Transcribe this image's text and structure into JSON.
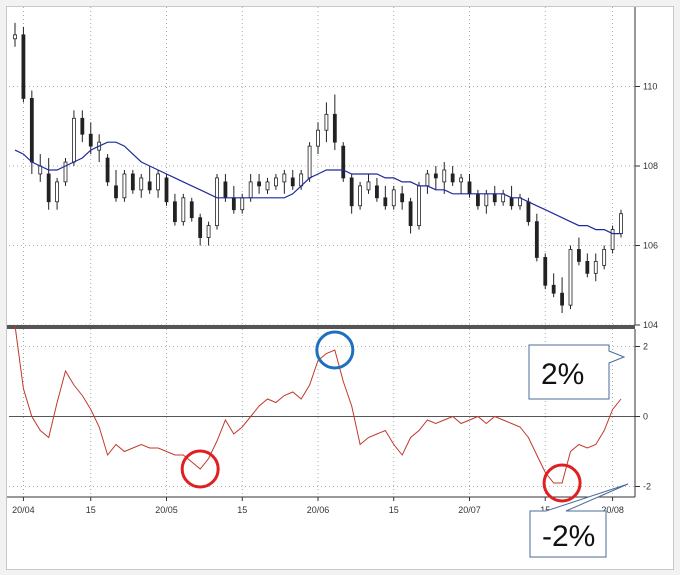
{
  "chart_data": [
    {
      "type": "candlestick",
      "name": "",
      "ylim": [
        104,
        112
      ],
      "y_ticks": [
        "110",
        "108",
        "106",
        "104"
      ],
      "x_ticks": [
        "20/04",
        "15",
        "20/05",
        "15",
        "20/06",
        "15",
        "20/07",
        "15",
        "20/08"
      ],
      "grid": true,
      "ma_color": "#1f2a9e",
      "candles": [
        [
          111.2,
          111.6,
          111.0,
          111.3
        ],
        [
          111.3,
          111.5,
          109.6,
          109.7
        ],
        [
          109.7,
          109.9,
          107.8,
          108.1
        ],
        [
          107.8,
          108.3,
          107.6,
          108.0
        ],
        [
          107.8,
          108.2,
          106.9,
          107.1
        ],
        [
          107.1,
          107.7,
          106.9,
          107.6
        ],
        [
          107.6,
          108.2,
          107.5,
          108.1
        ],
        [
          108.1,
          109.4,
          108.0,
          109.2
        ],
        [
          109.2,
          109.4,
          108.6,
          108.8
        ],
        [
          108.8,
          109.1,
          108.3,
          108.5
        ],
        [
          108.4,
          108.8,
          108.1,
          108.6
        ],
        [
          108.2,
          108.3,
          107.5,
          107.6
        ],
        [
          107.5,
          107.9,
          107.1,
          107.2
        ],
        [
          107.2,
          107.9,
          107.1,
          107.8
        ],
        [
          107.8,
          107.9,
          107.3,
          107.4
        ],
        [
          107.4,
          107.8,
          107.2,
          107.7
        ],
        [
          107.6,
          108.0,
          107.3,
          107.4
        ],
        [
          107.4,
          107.9,
          107.2,
          107.8
        ],
        [
          107.7,
          107.8,
          107.0,
          107.1
        ],
        [
          107.1,
          107.3,
          106.5,
          106.6
        ],
        [
          106.6,
          107.3,
          106.5,
          107.2
        ],
        [
          107.1,
          107.2,
          106.6,
          106.7
        ],
        [
          106.7,
          106.8,
          106.0,
          106.2
        ],
        [
          106.2,
          106.6,
          106.0,
          106.5
        ],
        [
          106.5,
          107.8,
          106.4,
          107.7
        ],
        [
          107.6,
          107.8,
          107.1,
          107.2
        ],
        [
          107.2,
          107.5,
          106.8,
          106.9
        ],
        [
          106.9,
          107.3,
          106.8,
          107.2
        ],
        [
          107.2,
          107.8,
          107.1,
          107.6
        ],
        [
          107.6,
          107.8,
          107.3,
          107.5
        ],
        [
          107.4,
          107.7,
          107.3,
          107.6
        ],
        [
          107.5,
          107.8,
          107.4,
          107.7
        ],
        [
          107.6,
          107.9,
          107.3,
          107.8
        ],
        [
          107.7,
          107.9,
          107.4,
          107.5
        ],
        [
          107.5,
          107.9,
          107.4,
          107.8
        ],
        [
          107.7,
          108.6,
          107.6,
          108.5
        ],
        [
          108.5,
          109.1,
          108.3,
          108.9
        ],
        [
          108.9,
          109.6,
          108.6,
          109.3
        ],
        [
          109.3,
          109.8,
          108.4,
          108.6
        ],
        [
          108.5,
          108.6,
          107.6,
          107.7
        ],
        [
          107.7,
          107.8,
          106.8,
          107.0
        ],
        [
          107.0,
          107.6,
          106.9,
          107.5
        ],
        [
          107.4,
          107.8,
          107.3,
          107.6
        ],
        [
          107.5,
          107.7,
          107.1,
          107.2
        ],
        [
          107.2,
          107.5,
          106.9,
          107.0
        ],
        [
          107.0,
          107.5,
          106.9,
          107.4
        ],
        [
          107.3,
          107.5,
          106.9,
          107.1
        ],
        [
          107.1,
          107.2,
          106.3,
          106.5
        ],
        [
          106.5,
          107.6,
          106.4,
          107.5
        ],
        [
          107.5,
          107.9,
          107.3,
          107.8
        ],
        [
          107.8,
          108.0,
          107.4,
          107.7
        ],
        [
          107.6,
          108.1,
          107.3,
          107.9
        ],
        [
          107.8,
          108.0,
          107.5,
          107.6
        ],
        [
          107.6,
          107.8,
          107.3,
          107.7
        ],
        [
          107.6,
          107.8,
          107.2,
          107.3
        ],
        [
          107.3,
          107.4,
          106.9,
          107.0
        ],
        [
          107.0,
          107.4,
          106.8,
          107.3
        ],
        [
          107.3,
          107.5,
          107.0,
          107.1
        ],
        [
          107.1,
          107.4,
          107.0,
          107.3
        ],
        [
          107.2,
          107.5,
          106.9,
          107.0
        ],
        [
          107.0,
          107.3,
          106.9,
          107.2
        ],
        [
          107.1,
          107.2,
          106.5,
          106.6
        ],
        [
          106.6,
          106.8,
          105.6,
          105.7
        ],
        [
          105.7,
          105.8,
          104.9,
          105.0
        ],
        [
          105.0,
          105.3,
          104.7,
          104.8
        ],
        [
          104.8,
          105.2,
          104.3,
          104.5
        ],
        [
          104.5,
          106.0,
          104.4,
          105.9
        ],
        [
          105.9,
          106.2,
          105.5,
          105.6
        ],
        [
          105.6,
          105.8,
          105.2,
          105.3
        ],
        [
          105.3,
          105.8,
          105.1,
          105.6
        ],
        [
          105.5,
          106.0,
          105.4,
          105.9
        ],
        [
          105.9,
          106.5,
          105.8,
          106.4
        ],
        [
          106.3,
          106.9,
          106.2,
          106.8
        ]
      ],
      "ma": [
        108.4,
        108.3,
        108.1,
        108.0,
        107.9,
        107.9,
        108.0,
        108.1,
        108.2,
        108.4,
        108.5,
        108.6,
        108.6,
        108.5,
        108.3,
        108.1,
        108.0,
        107.9,
        107.8,
        107.7,
        107.6,
        107.5,
        107.4,
        107.3,
        107.2,
        107.2,
        107.2,
        107.2,
        107.2,
        107.2,
        107.2,
        107.2,
        107.2,
        107.3,
        107.5,
        107.7,
        107.8,
        107.9,
        107.9,
        107.9,
        107.8,
        107.8,
        107.8,
        107.8,
        107.7,
        107.7,
        107.6,
        107.6,
        107.5,
        107.5,
        107.4,
        107.4,
        107.3,
        107.3,
        107.3,
        107.3,
        107.3,
        107.3,
        107.3,
        107.2,
        107.2,
        107.1,
        107.0,
        106.9,
        106.8,
        106.7,
        106.6,
        106.5,
        106.5,
        106.4,
        106.4,
        106.3,
        106.3
      ]
    },
    {
      "type": "line",
      "name": "",
      "ylim": [
        -2.3,
        2.5
      ],
      "y_ticks": [
        "2",
        "0",
        "-2"
      ],
      "color": "#c0392b",
      "zero_line": true,
      "values": [
        2.6,
        0.8,
        0.0,
        -0.4,
        -0.6,
        0.4,
        1.3,
        0.9,
        0.6,
        0.2,
        -0.3,
        -1.1,
        -0.8,
        -1.0,
        -0.9,
        -0.8,
        -0.9,
        -0.9,
        -1.0,
        -1.1,
        -1.1,
        -1.3,
        -1.5,
        -1.2,
        -0.7,
        -0.1,
        -0.5,
        -0.3,
        0.0,
        0.3,
        0.5,
        0.4,
        0.6,
        0.7,
        0.5,
        0.9,
        1.6,
        1.8,
        1.9,
        1.0,
        0.3,
        -0.8,
        -0.6,
        -0.5,
        -0.4,
        -0.8,
        -1.1,
        -0.6,
        -0.4,
        -0.1,
        -0.2,
        -0.1,
        0.0,
        -0.2,
        -0.1,
        0.0,
        -0.2,
        0.0,
        -0.1,
        -0.2,
        -0.3,
        -0.6,
        -1.1,
        -1.6,
        -1.9,
        -1.9,
        -1.0,
        -0.8,
        -0.9,
        -0.8,
        -0.4,
        0.2,
        0.5
      ]
    }
  ],
  "annotations": {
    "plus_label": "2%",
    "minus_label": "-2%"
  }
}
